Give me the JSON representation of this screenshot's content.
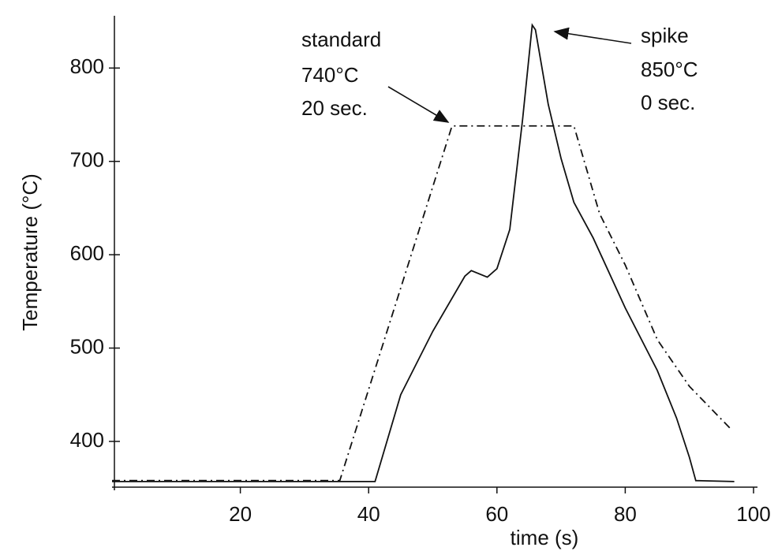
{
  "chart_data": {
    "type": "line",
    "x_label": "time (s)",
    "y_label": "Temperature (°C)",
    "xlim": [
      0,
      100
    ],
    "ylim": [
      351,
      856
    ],
    "xticks": [
      20,
      40,
      60,
      80,
      100
    ],
    "yticks": [
      400,
      500,
      600,
      700,
      800
    ],
    "series": [
      {
        "name": "standard",
        "color": "#111111",
        "dash": "dash-dot",
        "x": [
          0,
          35.5,
          53,
          72,
          76,
          80,
          85,
          90,
          96.5
        ],
        "values": [
          358,
          358,
          738,
          738,
          644,
          589,
          509,
          459,
          413
        ]
      },
      {
        "name": "spike",
        "color": "#111111",
        "dash": "solid",
        "x": [
          0,
          41,
          45,
          50,
          55,
          56,
          58.5,
          60,
          62,
          64,
          65.5,
          66,
          68,
          70,
          72,
          75,
          80,
          85,
          88,
          90,
          91,
          97
        ],
        "values": [
          357,
          357,
          450,
          518,
          577,
          583,
          576,
          585,
          627,
          745,
          846,
          841,
          761,
          703,
          656,
          618,
          543,
          476,
          425,
          383,
          358,
          357
        ]
      }
    ],
    "annotations": [
      "740°C",
      "20 sec.",
      "850°C",
      "0 sec."
    ]
  }
}
